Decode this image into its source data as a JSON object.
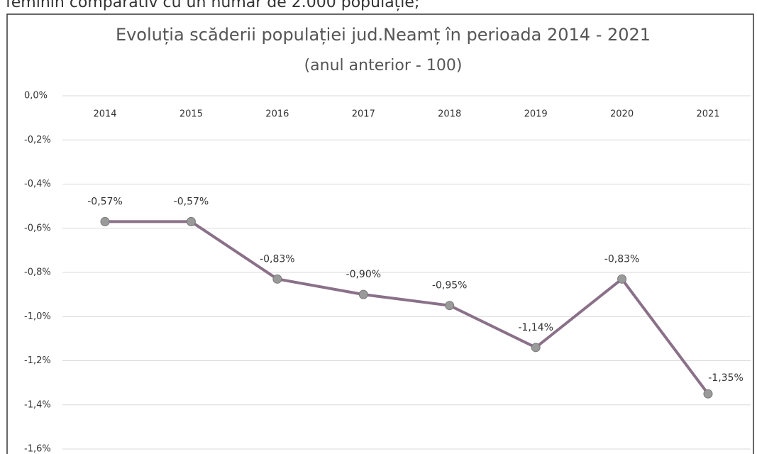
{
  "page_text": "feminin comparativ cu un număr de 2.000 populație;",
  "chart_data": {
    "type": "line",
    "title": "Evoluția scăderii populației jud.Neamț în perioada 2014 - 2021",
    "subtitle": "(anul anterior - 100)",
    "categories": [
      "2014",
      "2015",
      "2016",
      "2017",
      "2018",
      "2019",
      "2020",
      "2021"
    ],
    "series": [
      {
        "color": "#8a7088",
        "values": [
          -0.57,
          -0.57,
          -0.83,
          -0.9,
          -0.95,
          -1.14,
          -0.83,
          -1.35
        ],
        "value_labels": [
          "-0,57%",
          "-0,57%",
          "-0,83%",
          "-0,90%",
          "-0,95%",
          "-1,14%",
          "-0,83%",
          "-1,35%"
        ]
      }
    ],
    "marker_color": "#9a9a9a",
    "ylim": [
      -1.6,
      0
    ],
    "yticks": [
      {
        "value": 0,
        "label": "0,0%"
      },
      {
        "value": -0.2,
        "label": "-0,2%"
      },
      {
        "value": -0.4,
        "label": "-0,4%"
      },
      {
        "value": -0.6,
        "label": "-0,6%"
      },
      {
        "value": -0.8,
        "label": "-0,8%"
      },
      {
        "value": -1.0,
        "label": "-1,0%"
      },
      {
        "value": -1.2,
        "label": "-1,2%"
      },
      {
        "value": -1.4,
        "label": "-1,4%"
      },
      {
        "value": -1.6,
        "label": "-1,6%"
      }
    ],
    "grid": true
  }
}
